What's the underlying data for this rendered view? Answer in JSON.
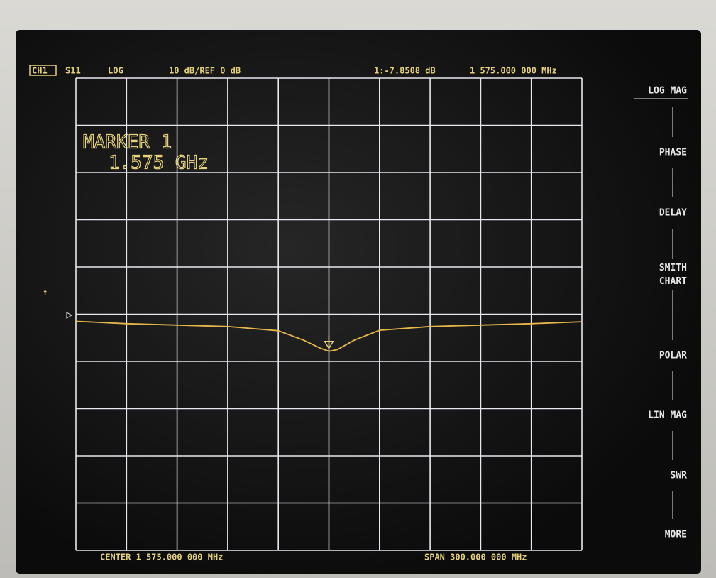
{
  "header": {
    "channel": "CH1",
    "parameter": "S11",
    "format": "LOG",
    "scale": "10 dB/REF 0 dB",
    "marker_frequency": "1 575.000 000 MHz"
  },
  "annotation": {
    "line1": "MARKER 1",
    "line2": "1.575 GHz"
  },
  "footer": {
    "center": "CENTER 1 575.000 000 MHz",
    "span": "SPAN 300.000 000 MHz"
  },
  "softkeys": [
    "LOG MAG",
    "PHASE",
    "DELAY",
    "SMITH\nCHART",
    "POLAR",
    "LIN MAG",
    "SWR",
    "MORE"
  ],
  "chart_data": {
    "type": "line",
    "x": [
      1425,
      1455,
      1485,
      1515,
      1545,
      1560,
      1570,
      1575,
      1580,
      1590,
      1605,
      1635,
      1665,
      1695,
      1725
    ],
    "series": [
      {
        "name": "S11",
        "color": "#e6b84a",
        "values": [
          -1.5,
          -2.0,
          -2.3,
          -2.6,
          -3.5,
          -5.5,
          -7.2,
          -7.85,
          -7.5,
          -5.5,
          -3.4,
          -2.6,
          -2.3,
          -2.0,
          -1.6
        ]
      }
    ],
    "marker": {
      "x": 1575,
      "value": -7.8508,
      "label": "1:-7.8508 dB"
    },
    "xlim": [
      1425,
      1725
    ],
    "ylim": [
      -50,
      50
    ],
    "xticks": [
      1425,
      1455,
      1485,
      1515,
      1545,
      1575,
      1605,
      1635,
      1665,
      1695,
      1725
    ],
    "yticks": [
      -50,
      -40,
      -30,
      -20,
      -10,
      0,
      10,
      20,
      30,
      40,
      50
    ],
    "grid": true
  }
}
